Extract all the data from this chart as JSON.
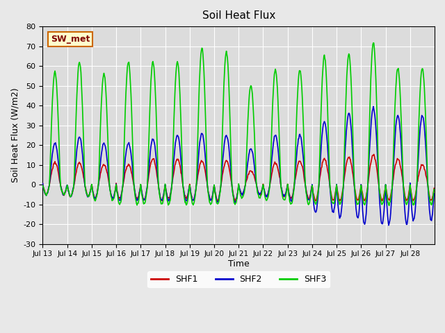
{
  "title": "Soil Heat Flux",
  "ylabel": "Soil Heat Flux (W/m2)",
  "xlabel": "Time",
  "annotation": "SW_met",
  "ylim": [
    -30,
    80
  ],
  "yticks": [
    -30,
    -20,
    -10,
    0,
    10,
    20,
    30,
    40,
    50,
    60,
    70,
    80
  ],
  "xtick_labels": [
    "Jul 13",
    "Jul 14",
    "Jul 15",
    "Jul 16",
    "Jul 17",
    "Jul 18",
    "Jul 19",
    "Jul 20",
    "Jul 21",
    "Jul 22",
    "Jul 23",
    "Jul 24",
    "Jul 25",
    "Jul 26",
    "Jul 27",
    "Jul 28"
  ],
  "legend_labels": [
    "SHF1",
    "SHF2",
    "SHF3"
  ],
  "legend_colors": [
    "#cc0000",
    "#0000cc",
    "#00cc00"
  ],
  "shf1_color": "#cc0000",
  "shf2_color": "#0000cc",
  "shf3_color": "#00cc00",
  "background_color": "#e8e8e8",
  "plot_bg_color": "#dcdcdc",
  "grid_color": "#ffffff",
  "annotation_bg": "#ffffcc",
  "annotation_border": "#cc6600",
  "n_days": 16,
  "pts_per_day": 48,
  "shf1_amps": [
    11,
    11,
    10,
    10,
    13,
    13,
    12,
    12,
    7,
    11,
    12,
    13,
    14,
    15,
    13,
    10
  ],
  "shf1_nights": [
    -5,
    -6,
    -7,
    -7,
    -8,
    -7,
    -8,
    -8,
    -5,
    -6,
    -7,
    -8,
    -8,
    -8,
    -8,
    -8
  ],
  "shf2_amps": [
    21,
    24,
    21,
    21,
    23,
    25,
    26,
    25,
    18,
    25,
    25,
    32,
    36,
    39,
    35,
    35
  ],
  "shf2_nights": [
    -5,
    -6,
    -7,
    -8,
    -8,
    -8,
    -8,
    -9,
    -5,
    -6,
    -8,
    -14,
    -17,
    -20,
    -20,
    -18
  ],
  "shf3_amps": [
    57,
    62,
    56,
    62,
    62,
    62,
    69,
    67,
    50,
    58,
    58,
    65,
    66,
    72,
    59,
    59
  ],
  "shf3_nights": [
    -5,
    -6,
    -8,
    -10,
    -10,
    -10,
    -10,
    -10,
    -7,
    -8,
    -10,
    -10,
    -10,
    -10,
    -10,
    -10
  ]
}
